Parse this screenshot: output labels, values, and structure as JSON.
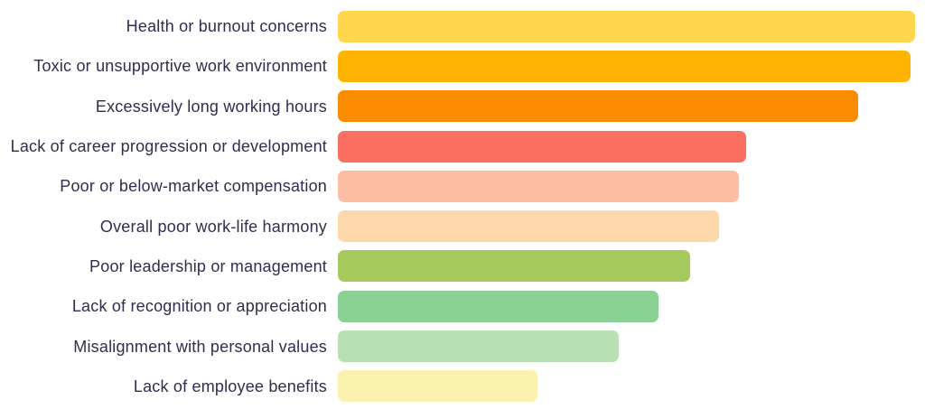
{
  "chart_data": {
    "type": "bar",
    "orientation": "horizontal",
    "title": "",
    "xlabel": "",
    "ylabel": "",
    "categories": [
      "Health or burnout concerns",
      "Toxic or unsupportive work environment",
      "Excessively long working hours",
      "Lack of career progression or development",
      "Poor or below-market compensation",
      "Overall poor work-life harmony",
      "Poor leadership or management",
      "Lack of recognition or appreciation",
      "Misalignment with personal values",
      "Lack of employee benefits"
    ],
    "values": [
      100,
      99.2,
      90.1,
      70.8,
      69.5,
      66.0,
      61.0,
      55.6,
      48.7,
      34.6
    ],
    "value_unit": "relative bar length (longest bar = 100; chart shows no axis, gridlines or data labels)",
    "bar_colors": [
      "#ffd64e",
      "#ffb403",
      "#fb8b00",
      "#fb6f60",
      "#fcbea3",
      "#fdd8aa",
      "#a5c95c",
      "#8ad194",
      "#b9dfb4",
      "#faf2ae"
    ],
    "label_color": "#2e2e4e",
    "background_color": "#ffffff",
    "legend": "none",
    "grid": false,
    "axes_visible": false
  }
}
